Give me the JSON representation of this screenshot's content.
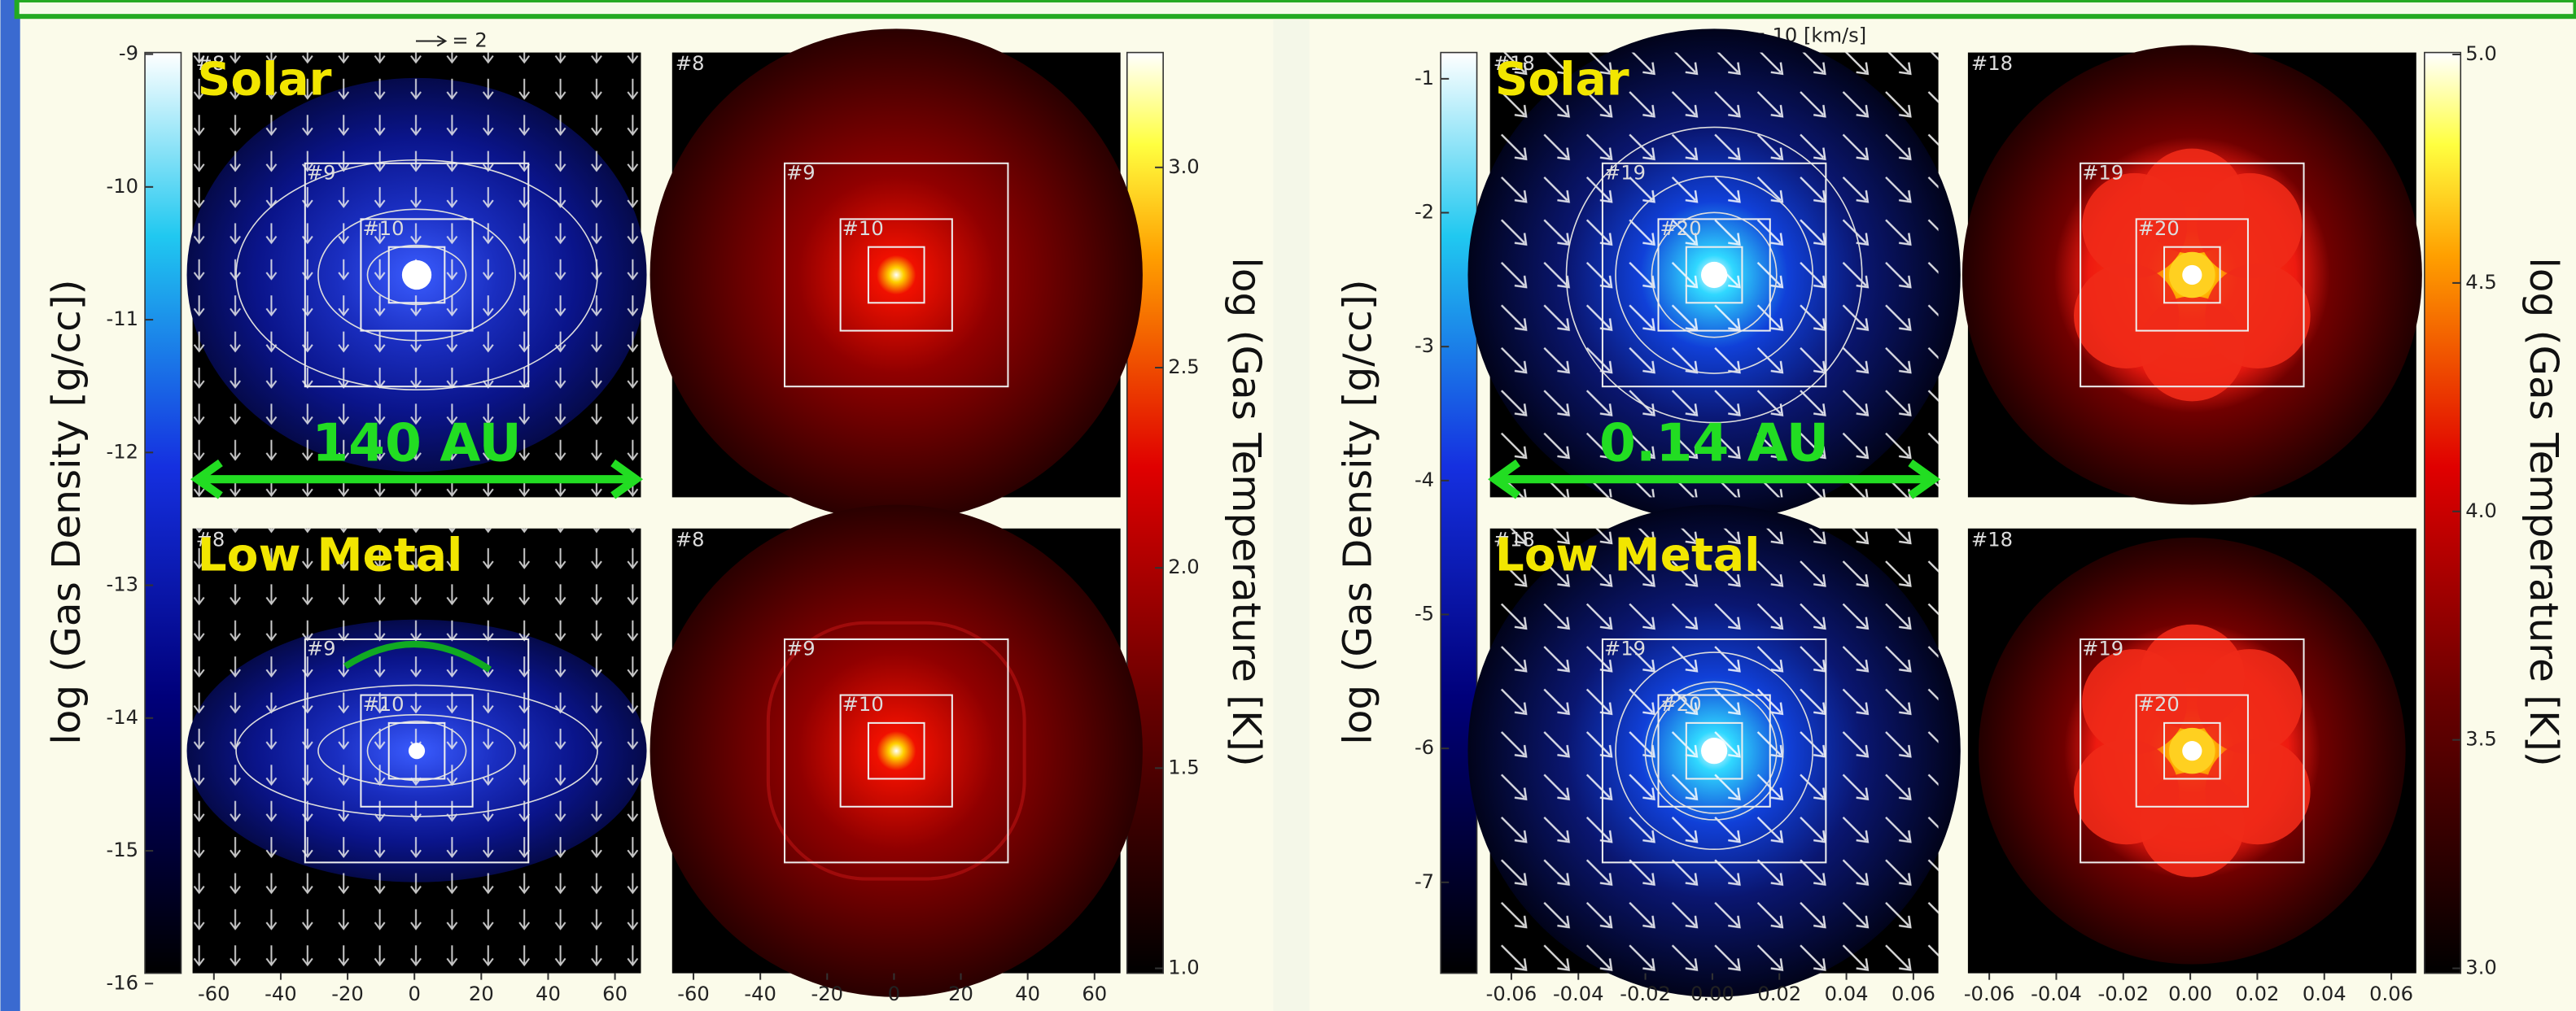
{
  "panels": [
    {
      "velocity_key": "= 2",
      "density_label": "log (Gas Density [g/cc])",
      "temperature_label": "log (Gas Temperature [K])",
      "density_ticks": [
        "-9",
        "-10",
        "-11",
        "-12",
        "-13",
        "-14",
        "-15",
        "-16"
      ],
      "temperature_ticks": [
        "1.0",
        "1.5",
        "2.0",
        "2.5",
        "3.0"
      ],
      "x_ticks": [
        "-60",
        "-40",
        "-20",
        "0",
        "20",
        "40",
        "60"
      ],
      "scale_label": "140 AU",
      "rows": [
        "Solar",
        "Low Metal"
      ],
      "levels": [
        "#8",
        "#9",
        "#10"
      ]
    },
    {
      "velocity_key": "= 10 [km/s]",
      "density_label": "log (Gas Density [g/cc])",
      "temperature_label": "log (Gas Temperature [K])",
      "density_ticks": [
        "-1",
        "-2",
        "-3",
        "-4",
        "-5",
        "-6",
        "-7"
      ],
      "temperature_ticks": [
        "3.0",
        "3.5",
        "4.0",
        "4.5",
        "5.0"
      ],
      "x_ticks": [
        "-0.06",
        "-0.04",
        "-0.02",
        "0.00",
        "0.02",
        "0.04",
        "0.06"
      ],
      "scale_label": "0.14 AU",
      "rows": [
        "Solar",
        "Low Metal"
      ],
      "levels": [
        "#18",
        "#19",
        "#20"
      ]
    }
  ]
}
